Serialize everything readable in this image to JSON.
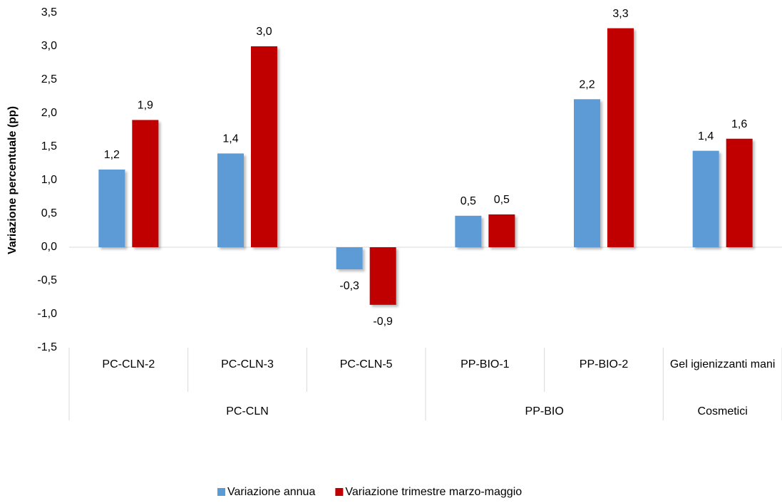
{
  "chart_data": {
    "type": "bar",
    "y_label": "Variazione percentuale (pp)",
    "categories": [
      "PC-CLN-2",
      "PC-CLN-3",
      "PC-CLN-5",
      "PP-BIO-1",
      "PP-BIO-2",
      "Gel igienizzanti mani"
    ],
    "category_groups": [
      "PC-CLN",
      "PC-CLN",
      "PC-CLN",
      "PP-BIO",
      "PP-BIO",
      "Cosmetici"
    ],
    "series": [
      {
        "name": "Variazione annua",
        "color": "#5b9bd5",
        "values": [
          1.16,
          1.4,
          -0.33,
          0.47,
          2.21,
          1.44
        ],
        "value_labels": [
          "1,2",
          "1,4",
          "-0,3",
          "0,5",
          "2,2",
          "1,4"
        ]
      },
      {
        "name": "Variazione trimestre marzo-maggio",
        "color": "#c00000",
        "values": [
          1.9,
          3.0,
          -0.86,
          0.49,
          3.27,
          1.62
        ],
        "value_labels": [
          "1,9",
          "3,0",
          "-0,9",
          "0,5",
          "3,3",
          "1,6"
        ]
      }
    ],
    "ylim": [
      -1.5,
      3.5
    ],
    "yticks": [
      {
        "value": -1.5,
        "label": "-1,5"
      },
      {
        "value": -1,
        "label": "-1,0"
      },
      {
        "value": -0.5,
        "label": "-0,5"
      },
      {
        "value": 0,
        "label": "0,0"
      },
      {
        "value": 0.5,
        "label": "0,5"
      },
      {
        "value": 1,
        "label": "1,0"
      },
      {
        "value": 1.5,
        "label": "1,5"
      },
      {
        "value": 2,
        "label": "2,0"
      },
      {
        "value": 2.5,
        "label": "2,5"
      },
      {
        "value": 3,
        "label": "3,0"
      },
      {
        "value": 3.5,
        "label": "3,5"
      }
    ],
    "grid": false,
    "legend": "bottom"
  }
}
